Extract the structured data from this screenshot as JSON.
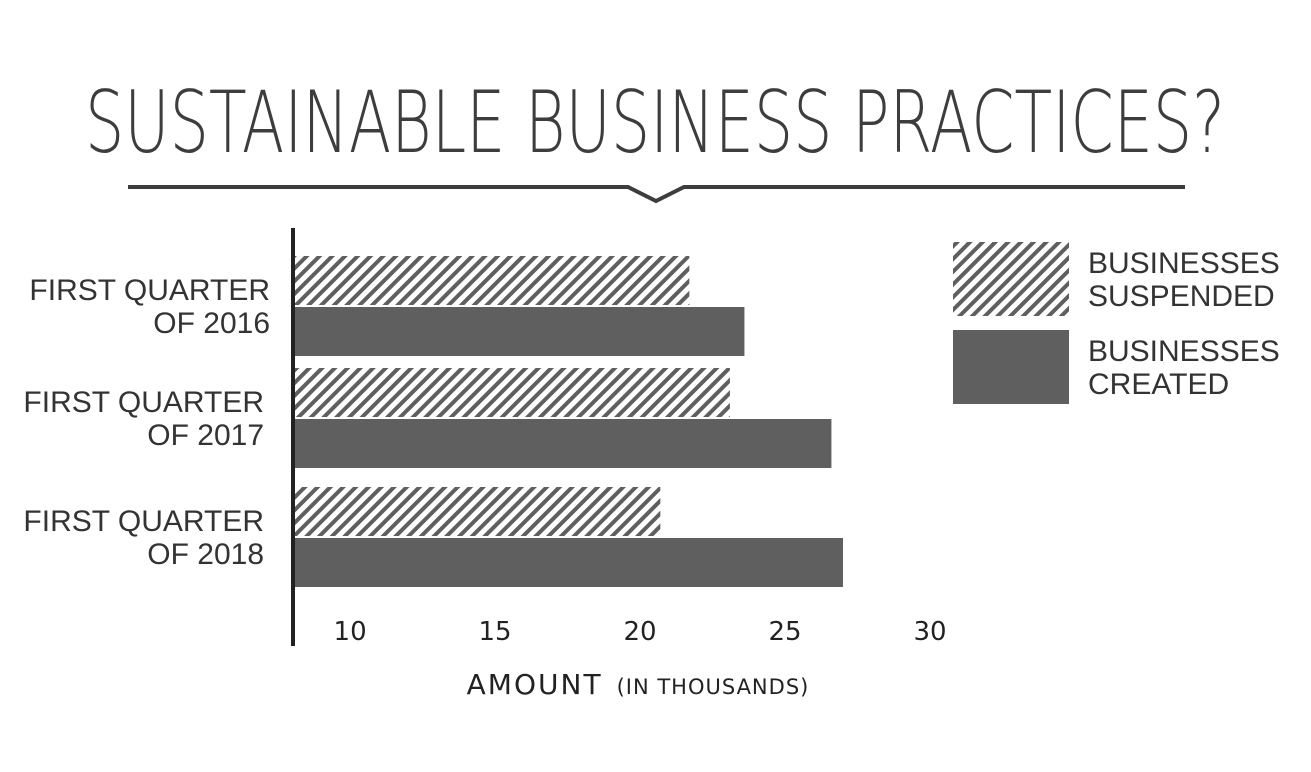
{
  "chart_data": {
    "type": "bar",
    "orientation": "horizontal",
    "title": "SUSTAINABLE BUSINESS PRACTICES?",
    "categories": [
      [
        "FIRST QUARTER",
        "OF 2016"
      ],
      [
        "FIRST QUARTER",
        "OF 2017"
      ],
      [
        "FIRST QUARTER",
        "OF 2018"
      ]
    ],
    "series": [
      {
        "name": [
          "BUSINESSES",
          "SUSPENDED"
        ],
        "values": [
          21.7,
          23.1,
          20.7
        ],
        "style": "hatched",
        "color": "#5f5f5f"
      },
      {
        "name": [
          "BUSINESSES",
          "CREATED"
        ],
        "values": [
          23.6,
          26.6,
          27.0
        ],
        "style": "solid",
        "color": "#5f5f5f"
      }
    ],
    "xticks": [
      10,
      15,
      20,
      25,
      30
    ],
    "xlim": [
      8.1,
      30
    ],
    "xlabel": "AMOUNT",
    "xlabel_sub": "(IN THOUSANDS)",
    "legend_position": "top-right",
    "grid": false
  }
}
